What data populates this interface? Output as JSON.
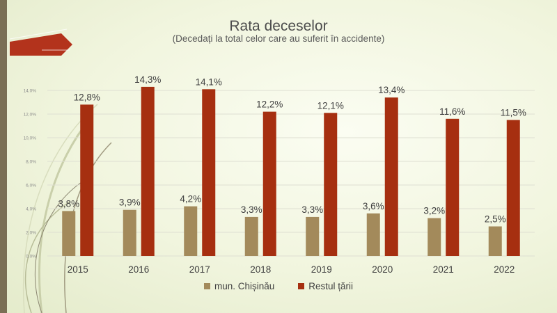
{
  "colors": {
    "bar_chisinau": "#a38a5b",
    "bar_rest": "#a62f10",
    "accent_arrow": "#b3331c"
  },
  "chart_data": {
    "type": "bar",
    "title": "Rata deceselor",
    "subtitle": "(Decedați la total celor care au suferit în accidente)",
    "categories": [
      "2015",
      "2016",
      "2017",
      "2018",
      "2019",
      "2020",
      "2021",
      "2022"
    ],
    "series": [
      {
        "name": "mun. Chișinău",
        "values": [
          3.8,
          3.9,
          4.2,
          3.3,
          3.3,
          3.6,
          3.2,
          2.5
        ],
        "labels": [
          "3,8%",
          "3,9%",
          "4,2%",
          "3,3%",
          "3,3%",
          "3,6%",
          "3,2%",
          "2,5%"
        ]
      },
      {
        "name": "Restul țării",
        "values": [
          12.8,
          14.3,
          14.1,
          12.2,
          12.1,
          13.4,
          11.6,
          11.5
        ],
        "labels": [
          "12,8%",
          "14,3%",
          "14,1%",
          "12,2%",
          "12,1%",
          "13,4%",
          "11,6%",
          "11,5%"
        ]
      }
    ],
    "ylim": [
      0,
      16
    ],
    "yticks": [
      0,
      2,
      4,
      6,
      8,
      10,
      12,
      14
    ],
    "ytick_labels": [
      "0,0%",
      "2,0%",
      "4,0%",
      "6,0%",
      "8,0%",
      "10,0%",
      "12,0%",
      "14,0%"
    ],
    "grid": true,
    "legend": "bottom"
  }
}
